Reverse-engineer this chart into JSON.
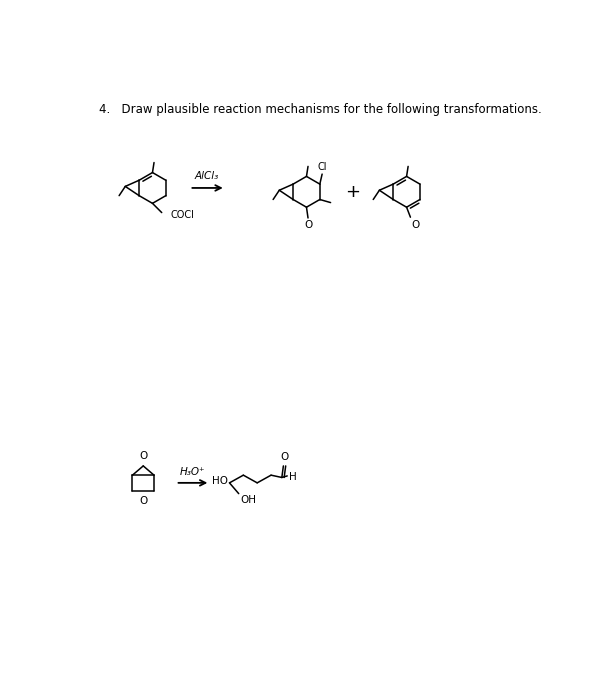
{
  "title": "4.   Draw plausible reaction mechanisms for the following transformations.",
  "title_fontsize": 8.5,
  "bg_color": "#ffffff",
  "line_color": "#000000",
  "text_color": "#000000",
  "reaction1_reagent": "AlCl₃",
  "reaction2_reagent": "H₃O⁺",
  "lw": 1.1
}
